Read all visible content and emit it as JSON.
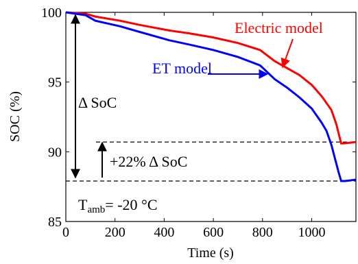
{
  "chart_data": {
    "type": "line",
    "xlabel": "Time (s)",
    "ylabel": "SOC (%)",
    "xlim": [
      0,
      1180
    ],
    "ylim": [
      85,
      100
    ],
    "xticks": [
      0,
      200,
      400,
      600,
      800,
      1000
    ],
    "yticks": [
      85,
      90,
      95,
      100
    ],
    "grid": false,
    "series": [
      {
        "name": "Electric model",
        "color": "#ff0000",
        "x": [
          0,
          80,
          120,
          220,
          300,
          420,
          500,
          600,
          700,
          790,
          850,
          900,
          950,
          1000,
          1040,
          1080,
          1100,
          1120,
          1130,
          1180
        ],
        "y": [
          100,
          99.9,
          99.7,
          99.4,
          99.1,
          98.7,
          98.5,
          98.2,
          97.8,
          97.3,
          96.5,
          96.0,
          95.5,
          94.8,
          94.0,
          93.0,
          92.0,
          90.6,
          90.6,
          90.7
        ]
      },
      {
        "name": "ET model",
        "color": "#0000ff",
        "x": [
          0,
          80,
          120,
          220,
          300,
          420,
          500,
          600,
          700,
          790,
          850,
          900,
          950,
          1000,
          1040,
          1060,
          1080,
          1095,
          1110,
          1120,
          1135,
          1180
        ],
        "y": [
          100,
          99.8,
          99.4,
          99.0,
          98.6,
          98.0,
          97.7,
          97.3,
          96.8,
          96.2,
          95.2,
          94.6,
          93.9,
          93.1,
          92.1,
          91.5,
          90.5,
          89.5,
          88.5,
          87.9,
          87.9,
          88.0
        ]
      }
    ],
    "annotations": {
      "electric_label": "Electric model",
      "et_label": "ET model",
      "delta_soc": "Δ SoC",
      "plus_22": "+22% Δ SoC",
      "tamb_main": "T",
      "tamb_sub": "amb",
      "tamb_rest": "= -20 °C",
      "dashed_levels": [
        90.7,
        87.9
      ]
    }
  }
}
